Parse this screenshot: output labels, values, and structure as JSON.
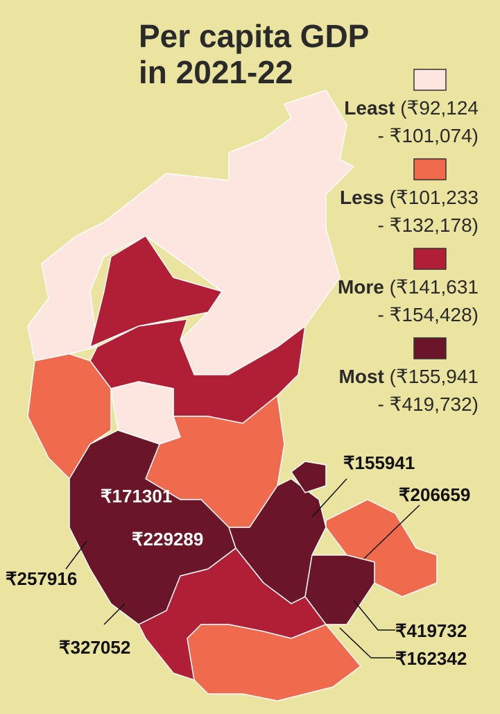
{
  "title": [
    "Per capita GDP",
    "in 2021-22"
  ],
  "legend": [
    {
      "name": "Least",
      "range": [
        "(₹92,124",
        "- ₹101,074)"
      ],
      "color": "#fde5e0"
    },
    {
      "name": "Less",
      "range": [
        "(₹101,233",
        "- ₹132,178)"
      ],
      "color": "#f06b4d"
    },
    {
      "name": "More",
      "range": [
        "(₹141,631",
        "- ₹154,428)"
      ],
      "color": "#b01f36"
    },
    {
      "name": "Most",
      "range": [
        "(₹155,941",
        "- ₹419,732)"
      ],
      "color": "#6b1628"
    }
  ],
  "labels": [
    "₹171301",
    "₹229289",
    "₹155941",
    "₹206659",
    "₹257916",
    "₹327052",
    "₹419732",
    "₹162342"
  ]
}
